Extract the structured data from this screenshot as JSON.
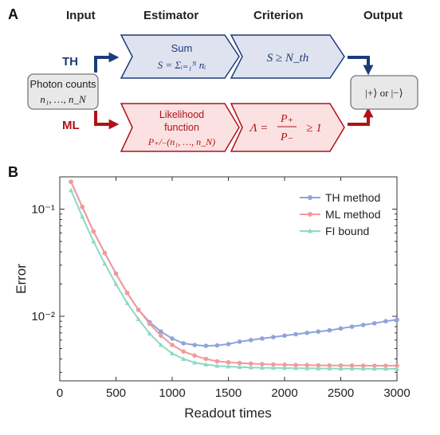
{
  "panel_a": {
    "label": "A",
    "headers": {
      "input": "Input",
      "estimator": "Estimator",
      "criterion": "Criterion",
      "output": "Output"
    },
    "input_box": {
      "line1": "Photon counts",
      "line2": "n₁, …, n_N"
    },
    "th_label": "TH",
    "ml_label": "ML",
    "th_estimator": {
      "title": "Sum",
      "formula": "S = Σᵢ₌₁ᴺ nᵢ"
    },
    "th_criterion": "S ≥ N_th",
    "ml_estimator": {
      "line1": "Likelihood",
      "line2": "function",
      "formula": "P₊/₋(n₁, …, n_N)"
    },
    "ml_criterion": {
      "lhs": "Λ =",
      "num": "P₊",
      "den": "P₋",
      "rhs": "≥ 1"
    },
    "output_box": "|+⟩ or |−⟩",
    "colors": {
      "blue": "#1c3b7a",
      "blue_fill": "#dfe3ef",
      "red": "#b01217",
      "red_fill": "#fbe1e1",
      "gray_fill": "#e8e8e8"
    }
  },
  "panel_b": {
    "label": "B"
  },
  "chart_data": {
    "type": "line",
    "xlabel": "Readout times",
    "ylabel": "Error",
    "xlim": [
      0,
      3000
    ],
    "ylim": [
      0.0025,
      0.2
    ],
    "yscale": "log",
    "xticks": [
      0,
      500,
      1000,
      1500,
      2000,
      2500,
      3000
    ],
    "yticks": [
      {
        "value": 0.1,
        "label": "10⁻¹"
      },
      {
        "value": 0.01,
        "label": "10⁻²"
      }
    ],
    "legend_placement": "top-right",
    "grid": false,
    "series": [
      {
        "name": "TH method",
        "color": "#8da4dc",
        "x": [
          100,
          200,
          300,
          400,
          500,
          600,
          700,
          800,
          900,
          1000,
          1100,
          1200,
          1300,
          1400,
          1500,
          1600,
          1700,
          1800,
          1900,
          2000,
          2100,
          2200,
          2300,
          2400,
          2500,
          2600,
          2700,
          2800,
          2900,
          3000
        ],
        "values": [
          0.18,
          0.105,
          0.062,
          0.039,
          0.025,
          0.0165,
          0.0115,
          0.0088,
          0.0072,
          0.0062,
          0.0056,
          0.0054,
          0.0053,
          0.00535,
          0.0055,
          0.0058,
          0.006,
          0.0062,
          0.0064,
          0.0066,
          0.0068,
          0.007,
          0.0072,
          0.0074,
          0.0077,
          0.008,
          0.0083,
          0.0086,
          0.009,
          0.0093
        ]
      },
      {
        "name": "ML method",
        "color": "#f29a9a",
        "x": [
          100,
          200,
          300,
          400,
          500,
          600,
          700,
          800,
          900,
          1000,
          1100,
          1200,
          1300,
          1400,
          1500,
          1600,
          1700,
          1800,
          1900,
          2000,
          2100,
          2200,
          2300,
          2400,
          2500,
          2600,
          2700,
          2800,
          2900,
          3000
        ],
        "values": [
          0.18,
          0.105,
          0.062,
          0.039,
          0.025,
          0.0165,
          0.0115,
          0.0085,
          0.0066,
          0.0054,
          0.0047,
          0.0043,
          0.004,
          0.0038,
          0.00372,
          0.00366,
          0.00362,
          0.00358,
          0.00355,
          0.00353,
          0.00351,
          0.0035,
          0.00349,
          0.00348,
          0.00347,
          0.00347,
          0.00346,
          0.00346,
          0.00346,
          0.00346
        ]
      },
      {
        "name": "FI  bound",
        "color": "#8fd8c4",
        "x": [
          100,
          200,
          300,
          400,
          500,
          600,
          700,
          800,
          900,
          1000,
          1100,
          1200,
          1300,
          1400,
          1500,
          1600,
          1700,
          1800,
          1900,
          2000,
          2100,
          2200,
          2300,
          2400,
          2500,
          2600,
          2700,
          2800,
          2900,
          3000
        ],
        "values": [
          0.15,
          0.085,
          0.05,
          0.031,
          0.02,
          0.0133,
          0.0094,
          0.0069,
          0.0054,
          0.0045,
          0.004,
          0.0037,
          0.00355,
          0.00345,
          0.0034,
          0.00336,
          0.00333,
          0.00331,
          0.0033,
          0.00329,
          0.00328,
          0.00327,
          0.00326,
          0.00326,
          0.00325,
          0.00325,
          0.00325,
          0.00324,
          0.00324,
          0.00324
        ]
      }
    ]
  }
}
